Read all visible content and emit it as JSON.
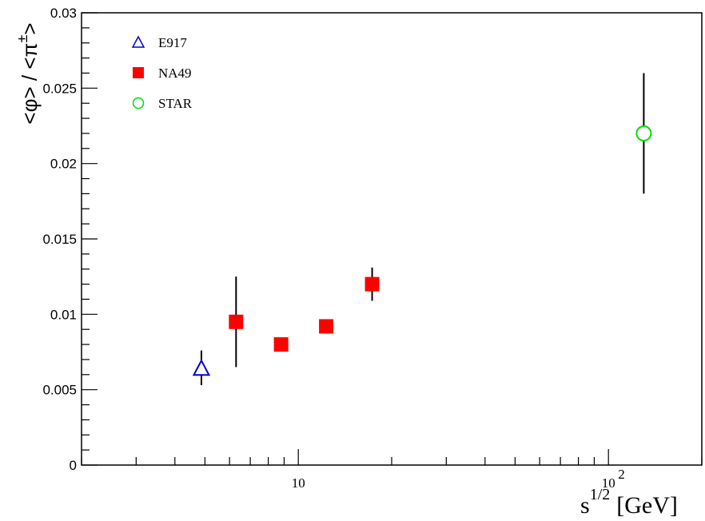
{
  "chart_data": {
    "type": "scatter",
    "title": "",
    "xlabel": "s^{1/2} [GeV]",
    "xlabel_parts": {
      "base": "s",
      "sup": "1/2",
      "unit": "[GeV]"
    },
    "ylabel": "<φ> / <π±>",
    "ylabel_parts": {
      "lt1": "<",
      "phi": "φ",
      "gt1": ">",
      "slash": " / ",
      "lt2": "<",
      "pi": "π",
      "pm": "±",
      "gt2": ">"
    },
    "xscale": "log",
    "xlim": [
      2.0,
      200.0
    ],
    "ylim": [
      0,
      0.03
    ],
    "grid": false,
    "legend_position": "top-left",
    "y_ticks": [
      {
        "value": 0,
        "label": "0"
      },
      {
        "value": 0.005,
        "label": "0.005"
      },
      {
        "value": 0.01,
        "label": "0.01"
      },
      {
        "value": 0.015,
        "label": "0.015"
      },
      {
        "value": 0.02,
        "label": "0.02"
      },
      {
        "value": 0.025,
        "label": "0.025"
      },
      {
        "value": 0.03,
        "label": "0.03"
      }
    ],
    "x_ticks": [
      {
        "value": 10,
        "label": "10",
        "sup": ""
      },
      {
        "value": 100,
        "label": "10",
        "sup": "2"
      }
    ],
    "series": [
      {
        "name": "E917",
        "marker": "open-triangle",
        "color": "#0000cc",
        "points": [
          {
            "x": 4.87,
            "y": 0.0064,
            "yerr_low": 0.0011,
            "yerr_high": 0.0012
          }
        ]
      },
      {
        "name": "NA49",
        "marker": "filled-square",
        "color": "#ff0000",
        "points": [
          {
            "x": 6.3,
            "y": 0.0095,
            "yerr_low": 0.003,
            "yerr_high": 0.003
          },
          {
            "x": 8.8,
            "y": 0.008,
            "yerr_low": 0,
            "yerr_high": 0
          },
          {
            "x": 12.3,
            "y": 0.0092,
            "yerr_low": 0,
            "yerr_high": 0
          },
          {
            "x": 17.3,
            "y": 0.012,
            "yerr_low": 0.0011,
            "yerr_high": 0.0011
          }
        ]
      },
      {
        "name": "STAR",
        "marker": "open-circle",
        "color": "#00dd00",
        "points": [
          {
            "x": 130,
            "y": 0.022,
            "yerr_low": 0.004,
            "yerr_high": 0.004
          }
        ]
      }
    ]
  }
}
